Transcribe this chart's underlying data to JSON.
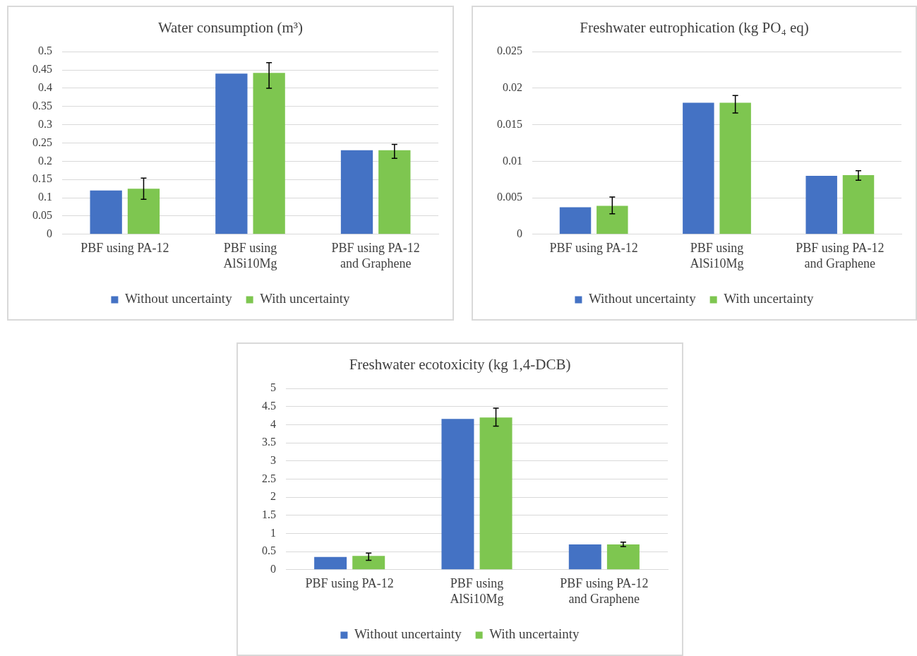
{
  "chart_data": [
    {
      "type": "bar",
      "title": "Water consumption (m³)",
      "categories": [
        "PBF using PA-12",
        "PBF using AlSi10Mg",
        "PBF using PA-12 and Graphene"
      ],
      "series": [
        {
          "name": "Without uncertainty",
          "color": "#4472c4",
          "values": [
            0.12,
            0.44,
            0.23
          ]
        },
        {
          "name": "With uncertainty",
          "color": "#7ec650",
          "values": [
            0.125,
            0.442,
            0.23
          ],
          "errors": [
            [
              0.096,
              0.154
            ],
            [
              0.4,
              0.47
            ],
            [
              0.208,
              0.246
            ]
          ]
        }
      ],
      "ylim": [
        0,
        0.5
      ],
      "yticks": [
        0,
        0.05,
        0.1,
        0.15,
        0.2,
        0.25,
        0.3,
        0.35,
        0.4,
        0.45,
        0.5
      ],
      "grid": "y",
      "legend": "bottom"
    },
    {
      "type": "bar",
      "title": "Freshwater eutrophication (kg PO₄ eq)",
      "categories": [
        "PBF using PA-12",
        "PBF using AlSi10Mg",
        "PBF using PA-12 and Graphene"
      ],
      "series": [
        {
          "name": "Without uncertainty",
          "color": "#4472c4",
          "values": [
            0.0037,
            0.018,
            0.008
          ]
        },
        {
          "name": "With uncertainty",
          "color": "#7ec650",
          "values": [
            0.0039,
            0.018,
            0.0081
          ],
          "errors": [
            [
              0.0028,
              0.0051
            ],
            [
              0.0166,
              0.019
            ],
            [
              0.0074,
              0.0087
            ]
          ]
        }
      ],
      "ylim": [
        0,
        0.025
      ],
      "yticks": [
        0,
        0.005,
        0.01,
        0.015,
        0.02,
        0.025
      ],
      "grid": "y",
      "legend": "bottom"
    },
    {
      "type": "bar",
      "title": "Freshwater ecotoxicity (kg 1,4-DCB)",
      "categories": [
        "PBF using PA-12",
        "PBF using AlSi10Mg",
        "PBF using PA-12 and Graphene"
      ],
      "series": [
        {
          "name": "Without uncertainty",
          "color": "#4472c4",
          "values": [
            0.35,
            4.16,
            0.7
          ]
        },
        {
          "name": "With uncertainty",
          "color": "#7ec650",
          "values": [
            0.38,
            4.2,
            0.7
          ],
          "errors": [
            [
              0.26,
              0.46
            ],
            [
              3.96,
              4.46
            ],
            [
              0.64,
              0.76
            ]
          ]
        }
      ],
      "ylim": [
        0,
        5
      ],
      "yticks": [
        0,
        0.5,
        1,
        1.5,
        2,
        2.5,
        3,
        3.5,
        4,
        4.5,
        5
      ],
      "grid": "y",
      "legend": "bottom"
    }
  ]
}
